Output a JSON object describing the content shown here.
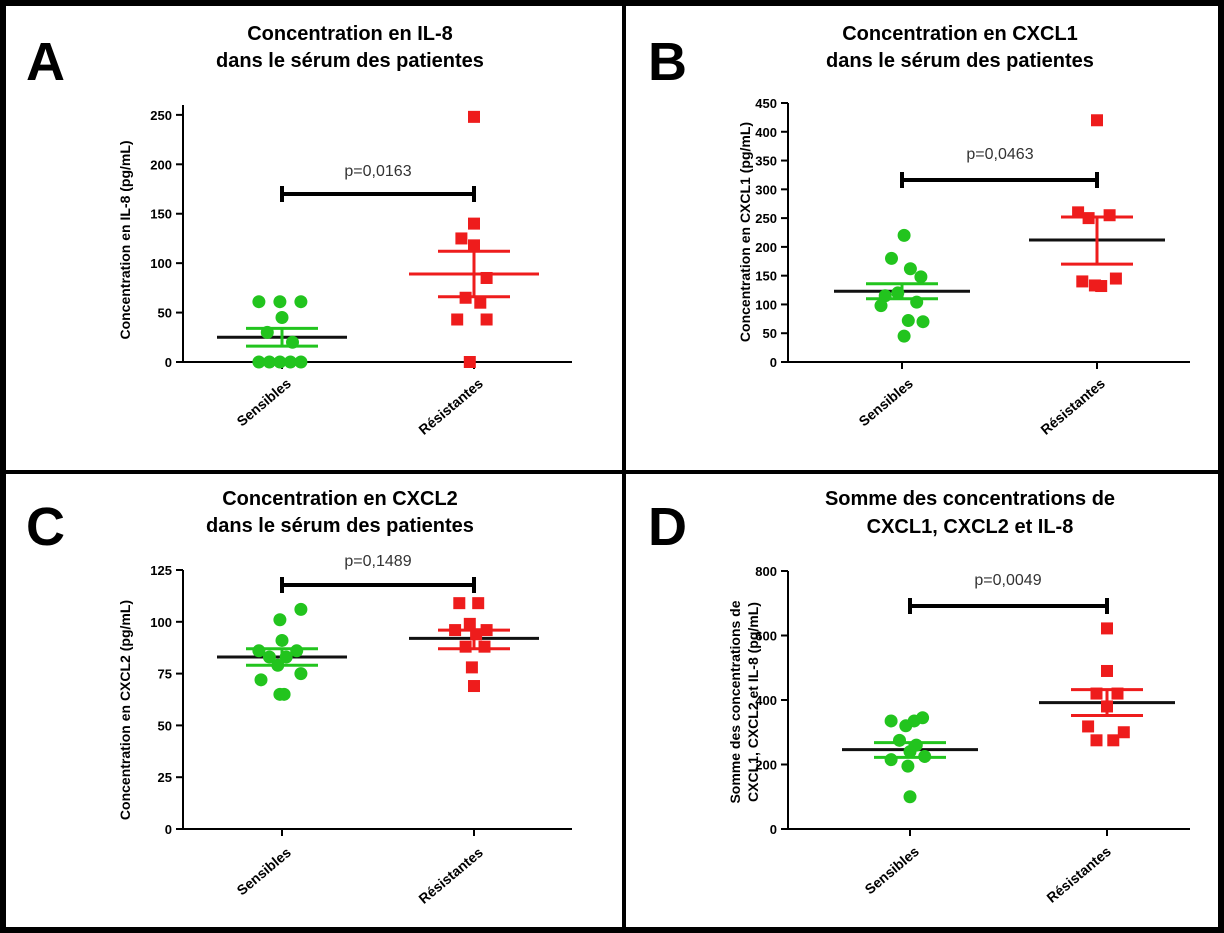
{
  "colors": {
    "sensibles": "#22c41e",
    "resistantes": "#ee1c1c",
    "frame": "#000000"
  },
  "chart_data": [
    {
      "type": "scatter",
      "panel_letter": "A",
      "title_lines": [
        "Concentration en IL-8",
        "dans le sérum des patientes"
      ],
      "ylabel_lines": [
        "Concentration en IL-8 (pg/mL)"
      ],
      "ylim": [
        0,
        260
      ],
      "yticks": [
        0,
        50,
        100,
        150,
        200,
        250
      ],
      "categories": [
        "Sensibles",
        "Résistantes"
      ],
      "pvalue": "p=0,0163",
      "series": [
        {
          "category": "Sensibles",
          "marker": "circle",
          "color": "#22c41e",
          "points": [
            [
              -0.55,
              61
            ],
            [
              -0.05,
              61
            ],
            [
              0.45,
              61
            ],
            [
              0,
              45
            ],
            [
              -0.35,
              30
            ],
            [
              0.25,
              20
            ],
            [
              -0.55,
              0
            ],
            [
              -0.3,
              0
            ],
            [
              -0.05,
              0
            ],
            [
              0.2,
              0
            ],
            [
              0.45,
              0
            ]
          ],
          "mean": 25,
          "sem": [
            16,
            34
          ],
          "mean_line_color": "#111111",
          "sem_color": "#22c41e"
        },
        {
          "category": "Résistantes",
          "marker": "square",
          "color": "#ee1c1c",
          "points": [
            [
              0,
              248
            ],
            [
              0,
              140
            ],
            [
              -0.3,
              125
            ],
            [
              0,
              118
            ],
            [
              0.3,
              85
            ],
            [
              -0.2,
              65
            ],
            [
              0.15,
              60
            ],
            [
              -0.4,
              43
            ],
            [
              0.3,
              43
            ],
            [
              -0.1,
              0
            ]
          ],
          "mean": 89,
          "sem": [
            66,
            112
          ],
          "mean_line_color": "#ee1c1c",
          "sem_color": "#ee1c1c"
        }
      ]
    },
    {
      "type": "scatter",
      "panel_letter": "B",
      "title_lines": [
        "Concentration en CXCL1",
        "dans le sérum des patientes"
      ],
      "ylabel_lines": [
        "Concentration en CXCL1 (pg/mL)"
      ],
      "ylim": [
        0,
        450
      ],
      "yticks": [
        0,
        50,
        100,
        150,
        200,
        250,
        300,
        350,
        400,
        450
      ],
      "categories": [
        "Sensibles",
        "Résistantes"
      ],
      "pvalue": "p=0,0463",
      "series": [
        {
          "category": "Sensibles",
          "marker": "circle",
          "color": "#22c41e",
          "points": [
            [
              0.05,
              220
            ],
            [
              -0.25,
              180
            ],
            [
              0.2,
              162
            ],
            [
              0.45,
              148
            ],
            [
              -0.4,
              115
            ],
            [
              -0.1,
              120
            ],
            [
              0.35,
              104
            ],
            [
              -0.5,
              98
            ],
            [
              0.5,
              70
            ],
            [
              0.15,
              72
            ],
            [
              0.05,
              45
            ]
          ],
          "mean": 123,
          "sem": [
            110,
            136
          ],
          "mean_line_color": "#111111",
          "sem_color": "#22c41e"
        },
        {
          "category": "Résistantes",
          "marker": "square",
          "color": "#ee1c1c",
          "points": [
            [
              0,
              420
            ],
            [
              -0.45,
              260
            ],
            [
              -0.2,
              250
            ],
            [
              0.3,
              255
            ],
            [
              0.45,
              145
            ],
            [
              -0.35,
              140
            ],
            [
              0.1,
              132
            ],
            [
              -0.05,
              133
            ]
          ],
          "mean": 212,
          "sem": [
            170,
            252
          ],
          "mean_line_color": "#111111",
          "sem_color": "#ee1c1c"
        }
      ]
    },
    {
      "type": "scatter",
      "panel_letter": "C",
      "title_lines": [
        "Concentration en CXCL2",
        "dans le sérum des patientes"
      ],
      "ylabel_lines": [
        "Concentration en CXCL2 (pg/mL)"
      ],
      "ylim": [
        0,
        125
      ],
      "yticks": [
        0,
        25,
        50,
        75,
        100,
        125
      ],
      "categories": [
        "Sensibles",
        "Résistantes"
      ],
      "pvalue": "p=0,1489",
      "series": [
        {
          "category": "Sensibles",
          "marker": "circle",
          "color": "#22c41e",
          "points": [
            [
              0.45,
              106
            ],
            [
              -0.05,
              101
            ],
            [
              0,
              91
            ],
            [
              -0.55,
              86
            ],
            [
              0.35,
              86
            ],
            [
              -0.3,
              83
            ],
            [
              0.1,
              83
            ],
            [
              -0.1,
              79
            ],
            [
              0.45,
              75
            ],
            [
              -0.5,
              72
            ],
            [
              0.05,
              65
            ],
            [
              -0.05,
              65
            ]
          ],
          "mean": 83,
          "sem": [
            79,
            87
          ],
          "mean_line_color": "#111111",
          "sem_color": "#22c41e"
        },
        {
          "category": "Résistantes",
          "marker": "square",
          "color": "#ee1c1c",
          "points": [
            [
              -0.35,
              109
            ],
            [
              0.1,
              109
            ],
            [
              -0.1,
              99
            ],
            [
              -0.45,
              96
            ],
            [
              0.3,
              96
            ],
            [
              0.05,
              94
            ],
            [
              -0.2,
              88
            ],
            [
              0.25,
              88
            ],
            [
              -0.05,
              78
            ],
            [
              0,
              69
            ]
          ],
          "mean": 92,
          "sem": [
            87,
            96
          ],
          "mean_line_color": "#111111",
          "sem_color": "#ee1c1c"
        }
      ]
    },
    {
      "type": "scatter",
      "panel_letter": "D",
      "title_lines": [
        "Somme des concentrations de",
        "CXCL1, CXCL2 et IL-8"
      ],
      "ylabel_lines": [
        "Somme des concentrations de",
        "CXCL1, CXCL2 et IL-8 (pg/mL)"
      ],
      "ylim": [
        0,
        800
      ],
      "yticks": [
        0,
        200,
        400,
        600,
        800
      ],
      "categories": [
        "Sensibles",
        "Résistantes"
      ],
      "pvalue": "p=0,0049",
      "series": [
        {
          "category": "Sensibles",
          "marker": "circle",
          "color": "#22c41e",
          "points": [
            [
              -0.45,
              335
            ],
            [
              0.1,
              335
            ],
            [
              0.3,
              345
            ],
            [
              -0.1,
              320
            ],
            [
              -0.25,
              275
            ],
            [
              0.15,
              260
            ],
            [
              0,
              240
            ],
            [
              -0.45,
              215
            ],
            [
              0.35,
              225
            ],
            [
              -0.05,
              195
            ],
            [
              0,
              100
            ]
          ],
          "mean": 246,
          "sem": [
            222,
            268
          ],
          "mean_line_color": "#111111",
          "sem_color": "#22c41e"
        },
        {
          "category": "Résistantes",
          "marker": "square",
          "color": "#ee1c1c",
          "points": [
            [
              0,
              622
            ],
            [
              0,
              490
            ],
            [
              -0.25,
              420
            ],
            [
              0.25,
              420
            ],
            [
              0,
              380
            ],
            [
              -0.45,
              318
            ],
            [
              0.4,
              300
            ],
            [
              -0.25,
              275
            ],
            [
              0.15,
              275
            ]
          ],
          "mean": 392,
          "sem": [
            352,
            432
          ],
          "mean_line_color": "#111111",
          "sem_color": "#ee1c1c"
        }
      ]
    }
  ]
}
